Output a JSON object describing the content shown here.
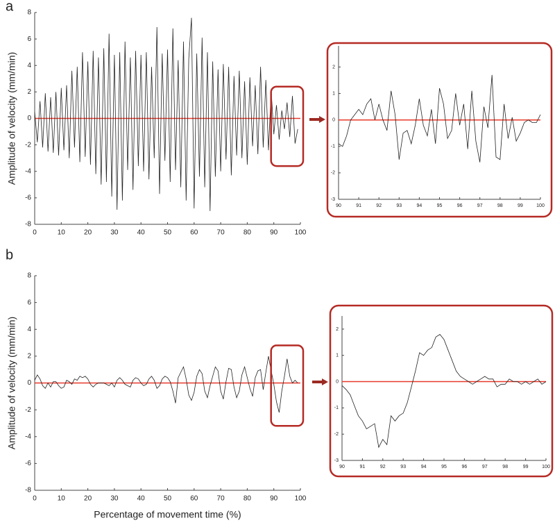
{
  "chart_data": [
    {
      "type": "line",
      "label": "a",
      "y_label": "Amplitude of velocity (mm/min)",
      "color": "#222222",
      "hline": 0,
      "hline_color": "#e8392a",
      "highlight": {
        "xlim": [
          90,
          100
        ],
        "ylim": [
          -3.6,
          2.4
        ],
        "color": "#b52a24"
      },
      "xlim": [
        0,
        100
      ],
      "ylim": [
        -8,
        8
      ],
      "xticks": [
        0,
        10,
        20,
        30,
        40,
        50,
        60,
        70,
        80,
        90,
        100
      ],
      "yticks": [
        -8,
        -6,
        -4,
        -2,
        0,
        2,
        4,
        6,
        8
      ],
      "x": [
        0,
        1,
        2,
        3,
        4,
        5,
        6,
        7,
        8,
        9,
        10,
        11,
        12,
        13,
        14,
        15,
        16,
        17,
        18,
        19,
        20,
        21,
        22,
        23,
        24,
        25,
        26,
        27,
        28,
        29,
        30,
        31,
        32,
        33,
        34,
        35,
        36,
        37,
        38,
        39,
        40,
        41,
        42,
        43,
        44,
        45,
        46,
        47,
        48,
        49,
        50,
        51,
        52,
        53,
        54,
        55,
        56,
        57,
        58,
        59,
        60,
        61,
        62,
        63,
        64,
        65,
        66,
        67,
        68,
        69,
        70,
        71,
        72,
        73,
        74,
        75,
        76,
        77,
        78,
        79,
        80,
        81,
        82,
        83,
        84,
        85,
        86,
        87,
        88,
        89,
        90,
        91,
        92,
        93,
        94,
        95,
        96,
        97,
        98,
        99
      ],
      "values": [
        0.5,
        -1.8,
        1.3,
        -2.2,
        1.9,
        -2.5,
        1.6,
        -2.6,
        2.0,
        -2.8,
        2.3,
        -2.4,
        2.5,
        -3.0,
        3.6,
        -2.2,
        3.9,
        -3.3,
        5.0,
        -2.9,
        4.3,
        -3.5,
        5.1,
        -4.2,
        4.6,
        -5.0,
        5.3,
        -4.8,
        6.4,
        -5.9,
        4.8,
        -6.9,
        5.0,
        -6.2,
        5.8,
        -3.9,
        4.6,
        -5.4,
        5.1,
        -3.6,
        4.8,
        -4.0,
        5.0,
        -4.6,
        3.9,
        -3.0,
        6.9,
        -5.7,
        4.9,
        -3.2,
        5.2,
        -4.8,
        6.8,
        -3.9,
        4.4,
        -5.2,
        5.8,
        -6.2,
        4.5,
        7.6,
        -6.8,
        4.9,
        -4.4,
        6.1,
        -5.2,
        5.0,
        -7.0,
        4.3,
        -4.4,
        3.7,
        -4.0,
        4.1,
        -3.1,
        3.9,
        -4.3,
        3.2,
        -2.8,
        3.6,
        -3.0,
        2.8,
        -3.5,
        3.1,
        -2.1,
        2.5,
        -2.7,
        3.9,
        -2.2,
        2.9,
        -2.4,
        2.1,
        -1.2,
        1.0,
        -1.6,
        0.6,
        -0.8,
        1.2,
        -1.4,
        1.7,
        -1.9,
        -0.8
      ]
    },
    {
      "type": "line",
      "color": "#222222",
      "hline": 0,
      "hline_color": "#e8392a",
      "frame_color": "#b52a24",
      "xlim": [
        90,
        100
      ],
      "ylim": [
        -3,
        2.8
      ],
      "xticks": [
        90,
        91,
        92,
        93,
        94,
        95,
        96,
        97,
        98,
        99,
        100
      ],
      "yticks": [
        -3,
        -2,
        -1,
        0,
        1,
        2
      ],
      "x": [
        90,
        90.2,
        90.4,
        90.6,
        90.8,
        91,
        91.2,
        91.4,
        91.6,
        91.8,
        92,
        92.2,
        92.4,
        92.6,
        92.8,
        93,
        93.2,
        93.4,
        93.6,
        93.8,
        94,
        94.2,
        94.4,
        94.6,
        94.8,
        95,
        95.2,
        95.4,
        95.6,
        95.8,
        96,
        96.2,
        96.4,
        96.6,
        96.8,
        97,
        97.2,
        97.4,
        97.6,
        97.8,
        98,
        98.2,
        98.4,
        98.6,
        98.8,
        99,
        99.2,
        99.4,
        99.6,
        99.8,
        100
      ],
      "values": [
        -0.9,
        -1.0,
        -0.6,
        0.0,
        0.2,
        0.4,
        0.2,
        0.6,
        0.8,
        0.0,
        0.6,
        0.0,
        -0.4,
        1.1,
        0.2,
        -1.5,
        -0.5,
        -0.4,
        -0.9,
        -0.2,
        0.8,
        -0.2,
        -0.6,
        0.4,
        -0.9,
        1.2,
        0.6,
        -0.7,
        -0.4,
        1.0,
        -0.2,
        0.6,
        -1.1,
        1.1,
        -0.8,
        -1.6,
        0.5,
        -0.3,
        1.7,
        -1.4,
        -1.5,
        0.6,
        -0.7,
        0.1,
        -0.8,
        -0.5,
        -0.1,
        0.0,
        -0.1,
        -0.1,
        0.2
      ]
    },
    {
      "type": "line",
      "label": "b",
      "y_label": "Amplitude of velocity (mm/min)",
      "x_label": "Percentage of movement time (%)",
      "color": "#222222",
      "hline": 0,
      "hline_color": "#e8392a",
      "highlight": {
        "xlim": [
          90,
          100
        ],
        "ylim": [
          -3.2,
          2.8
        ],
        "color": "#b52a24"
      },
      "xlim": [
        0,
        100
      ],
      "ylim": [
        -8,
        8
      ],
      "xticks": [
        0,
        10,
        20,
        30,
        40,
        50,
        60,
        70,
        80,
        90,
        100
      ],
      "yticks": [
        -8,
        -6,
        -4,
        -2,
        0,
        2,
        4,
        6,
        8
      ],
      "x": [
        0,
        1,
        2,
        3,
        4,
        5,
        6,
        7,
        8,
        9,
        10,
        11,
        12,
        13,
        14,
        15,
        16,
        17,
        18,
        19,
        20,
        21,
        22,
        23,
        24,
        25,
        26,
        27,
        28,
        29,
        30,
        31,
        32,
        33,
        34,
        35,
        36,
        37,
        38,
        39,
        40,
        41,
        42,
        43,
        44,
        45,
        46,
        47,
        48,
        49,
        50,
        51,
        52,
        53,
        54,
        55,
        56,
        57,
        58,
        59,
        60,
        61,
        62,
        63,
        64,
        65,
        66,
        67,
        68,
        69,
        70,
        71,
        72,
        73,
        74,
        75,
        76,
        77,
        78,
        79,
        80,
        81,
        82,
        83,
        84,
        85,
        86,
        87,
        88,
        89,
        90,
        91,
        92,
        93,
        94,
        95,
        96,
        97,
        98,
        99
      ],
      "values": [
        0.2,
        0.6,
        0.3,
        -0.2,
        -0.4,
        0.0,
        -0.3,
        0.1,
        0.1,
        -0.2,
        -0.4,
        -0.3,
        0.2,
        0.1,
        -0.1,
        0.3,
        0.2,
        0.5,
        0.4,
        0.5,
        0.3,
        -0.1,
        -0.3,
        -0.1,
        0.0,
        0.0,
        0.0,
        -0.1,
        -0.2,
        0.0,
        -0.3,
        0.2,
        0.4,
        0.2,
        -0.1,
        -0.2,
        -0.3,
        0.2,
        0.4,
        0.3,
        0.0,
        -0.2,
        -0.1,
        0.3,
        0.5,
        0.2,
        -0.4,
        -0.2,
        0.3,
        0.5,
        0.4,
        0.1,
        -0.6,
        -1.5,
        0.4,
        0.8,
        1.2,
        0.3,
        -0.9,
        -1.3,
        -0.7,
        0.5,
        1.0,
        0.7,
        -0.6,
        -1.1,
        -0.2,
        0.5,
        1.2,
        0.9,
        -0.6,
        -1.2,
        0.1,
        1.1,
        1.0,
        -0.3,
        -1.1,
        -0.6,
        0.6,
        1.2,
        0.4,
        -0.4,
        -1.0,
        0.4,
        0.9,
        1.0,
        -0.5,
        0.8,
        2.0,
        0.9,
        -0.1,
        -1.4,
        -2.2,
        -0.6,
        0.5,
        1.8,
        0.5,
        0.0,
        0.2,
        0.0
      ]
    },
    {
      "type": "line",
      "color": "#222222",
      "hline": 0,
      "hline_color": "#e8392a",
      "frame_color": "#b52a24",
      "xlim": [
        90,
        100
      ],
      "ylim": [
        -3,
        2.5
      ],
      "xticks": [
        90,
        91,
        92,
        93,
        94,
        95,
        96,
        97,
        98,
        99,
        100
      ],
      "yticks": [
        -3,
        -2,
        -1,
        0,
        1,
        2
      ],
      "x": [
        90,
        90.2,
        90.4,
        90.6,
        90.8,
        91,
        91.2,
        91.4,
        91.6,
        91.8,
        92,
        92.2,
        92.4,
        92.6,
        92.8,
        93,
        93.2,
        93.4,
        93.6,
        93.8,
        94,
        94.2,
        94.4,
        94.6,
        94.8,
        95,
        95.2,
        95.4,
        95.6,
        95.8,
        96,
        96.2,
        96.4,
        96.6,
        96.8,
        97,
        97.2,
        97.4,
        97.6,
        97.8,
        98,
        98.2,
        98.4,
        98.6,
        98.8,
        99,
        99.2,
        99.4,
        99.6,
        99.8,
        100
      ],
      "values": [
        -0.15,
        -0.3,
        -0.5,
        -0.9,
        -1.3,
        -1.5,
        -1.8,
        -1.7,
        -1.6,
        -2.5,
        -2.2,
        -2.4,
        -1.3,
        -1.5,
        -1.3,
        -1.2,
        -0.8,
        -0.2,
        0.4,
        1.1,
        1.0,
        1.2,
        1.3,
        1.7,
        1.8,
        1.6,
        1.2,
        0.8,
        0.4,
        0.2,
        0.1,
        0.0,
        -0.1,
        0.0,
        0.1,
        0.2,
        0.1,
        0.1,
        -0.2,
        -0.1,
        -0.1,
        0.1,
        0.0,
        0.0,
        -0.1,
        0.0,
        -0.1,
        0.0,
        0.1,
        -0.1,
        0.0
      ]
    }
  ]
}
